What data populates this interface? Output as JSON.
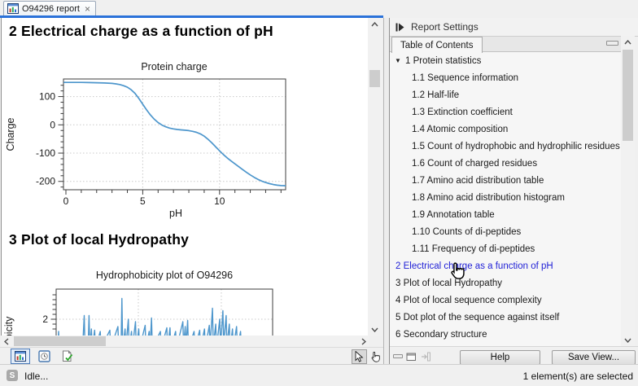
{
  "tab": {
    "title": "O94296 report",
    "close_glyph": "×"
  },
  "report": {
    "section2_heading": "2 Electrical charge as a function of pH",
    "section3_heading": "3 Plot of local Hydropathy"
  },
  "chart_data": [
    {
      "type": "line",
      "title": "Protein charge",
      "xlabel": "pH",
      "ylabel": "Charge",
      "xlim": [
        0,
        14.3
      ],
      "ylim": [
        -230,
        162
      ],
      "x_major_ticks": [
        0,
        5,
        10
      ],
      "y_major_ticks": [
        100,
        0,
        -100,
        -200
      ],
      "x_gridlines": [
        5,
        10
      ],
      "grid": true,
      "line_color": "#4d96cc",
      "points": [
        [
          -0.15,
          150
        ],
        [
          0,
          150
        ],
        [
          0.5,
          150
        ],
        [
          1,
          150
        ],
        [
          1.5,
          149.5
        ],
        [
          2,
          149
        ],
        [
          2.5,
          148
        ],
        [
          3,
          146.5
        ],
        [
          3.25,
          145
        ],
        [
          3.5,
          142.5
        ],
        [
          3.75,
          138.5
        ],
        [
          4,
          133
        ],
        [
          4.25,
          124
        ],
        [
          4.5,
          111
        ],
        [
          4.75,
          93
        ],
        [
          5,
          73
        ],
        [
          5.25,
          53
        ],
        [
          5.5,
          35
        ],
        [
          5.75,
          20
        ],
        [
          6,
          8
        ],
        [
          6.25,
          -1
        ],
        [
          6.5,
          -7
        ],
        [
          6.75,
          -11.5
        ],
        [
          7,
          -14.5
        ],
        [
          7.25,
          -16.5
        ],
        [
          7.5,
          -18
        ],
        [
          7.75,
          -19
        ],
        [
          8,
          -20.5
        ],
        [
          8.25,
          -23
        ],
        [
          8.5,
          -26.5
        ],
        [
          8.75,
          -32
        ],
        [
          9,
          -40
        ],
        [
          9.25,
          -51
        ],
        [
          9.5,
          -64
        ],
        [
          9.75,
          -78
        ],
        [
          10,
          -92
        ],
        [
          10.25,
          -105
        ],
        [
          10.5,
          -117
        ],
        [
          10.75,
          -128
        ],
        [
          11,
          -138
        ],
        [
          11.25,
          -148
        ],
        [
          11.5,
          -158
        ],
        [
          11.75,
          -168
        ],
        [
          12,
          -177
        ],
        [
          12.25,
          -185.5
        ],
        [
          12.5,
          -193
        ],
        [
          12.75,
          -199
        ],
        [
          13,
          -204
        ],
        [
          13.25,
          -208
        ],
        [
          13.5,
          -211
        ],
        [
          13.75,
          -213.5
        ],
        [
          14,
          -215
        ],
        [
          14.3,
          -215.5
        ]
      ]
    },
    {
      "type": "line",
      "title": "Hydrophobicity plot of O94296",
      "xlabel": "",
      "ylabel": "Hydrophobicity",
      "visible_y_major_tick": 2,
      "y_minor_ticks": [
        1.6,
        1.8,
        2.2,
        2.4,
        2.6,
        2.8,
        3.0
      ],
      "x_gridlines_residue": [
        102.5,
        206
      ],
      "grid": true,
      "line_color": "#4d96cc",
      "note_clipped": "only top of plot visible",
      "points": [
        [
          0,
          0.8
        ],
        [
          2,
          0.8
        ],
        [
          3,
          1.5
        ],
        [
          4,
          0.8
        ],
        [
          33,
          0.8
        ],
        [
          35,
          2.15
        ],
        [
          36,
          0.8
        ],
        [
          40,
          0.9
        ],
        [
          41,
          2.15
        ],
        [
          42,
          0.8
        ],
        [
          44,
          1.6
        ],
        [
          45,
          0.8
        ],
        [
          48,
          1.55
        ],
        [
          49,
          0.8
        ],
        [
          55,
          1.5
        ],
        [
          56,
          0.8
        ],
        [
          67,
          1.55
        ],
        [
          68,
          0.8
        ],
        [
          77,
          1.7
        ],
        [
          78,
          0.9
        ],
        [
          81,
          0.9
        ],
        [
          82,
          2.85
        ],
        [
          83,
          0.8
        ],
        [
          86,
          1.6
        ],
        [
          87,
          0.8
        ],
        [
          90,
          2.0
        ],
        [
          91,
          0.8
        ],
        [
          94,
          1.5
        ],
        [
          95,
          0.8
        ],
        [
          99,
          1.9
        ],
        [
          100,
          0.8
        ],
        [
          103,
          1.6
        ],
        [
          104,
          0.8
        ],
        [
          111,
          1.75
        ],
        [
          112,
          0.8
        ],
        [
          116,
          1.5
        ],
        [
          117,
          0.8
        ],
        [
          119,
          2.05
        ],
        [
          120,
          0.8
        ],
        [
          130,
          1.5
        ],
        [
          131,
          0.8
        ],
        [
          138,
          1.65
        ],
        [
          139,
          0.8
        ],
        [
          142,
          1.65
        ],
        [
          143,
          0.8
        ],
        [
          149,
          1.5
        ],
        [
          150,
          0.8
        ],
        [
          158,
          1.9
        ],
        [
          159,
          0.9
        ],
        [
          161,
          1.7
        ],
        [
          162,
          0.9
        ],
        [
          164,
          1.95
        ],
        [
          165,
          0.8
        ],
        [
          172,
          1.5
        ],
        [
          173,
          0.8
        ],
        [
          179,
          1.55
        ],
        [
          180,
          0.8
        ],
        [
          185,
          1.6
        ],
        [
          186,
          0.8
        ],
        [
          191,
          1.75
        ],
        [
          192,
          0.9
        ],
        [
          195,
          2.45
        ],
        [
          196,
          0.9
        ],
        [
          199,
          1.8
        ],
        [
          200,
          0.8
        ],
        [
          204,
          2.0
        ],
        [
          205,
          0.9
        ],
        [
          208,
          2.35
        ],
        [
          209,
          1.0
        ],
        [
          212,
          2.15
        ],
        [
          213,
          0.9
        ],
        [
          216,
          1.8
        ],
        [
          217,
          0.8
        ],
        [
          220,
          1.6
        ],
        [
          221,
          0.8
        ],
        [
          225,
          1.7
        ],
        [
          226,
          0.8
        ],
        [
          230,
          1.5
        ],
        [
          231,
          0.8
        ],
        [
          270,
          0.8
        ]
      ]
    }
  ],
  "sidebar": {
    "header": "Report Settings",
    "tab": "Table of Contents",
    "toc": [
      {
        "label": "1 Protein statistics",
        "level": 0,
        "expander": true,
        "selected": false
      },
      {
        "label": "1.1 Sequence information",
        "level": 1,
        "expander": false,
        "selected": false
      },
      {
        "label": "1.2 Half-life",
        "level": 1,
        "expander": false,
        "selected": false
      },
      {
        "label": "1.3 Extinction coefficient",
        "level": 1,
        "expander": false,
        "selected": false
      },
      {
        "label": "1.4 Atomic composition",
        "level": 1,
        "expander": false,
        "selected": false
      },
      {
        "label": "1.5 Count of hydrophobic and hydrophilic residues",
        "level": 1,
        "expander": false,
        "selected": false
      },
      {
        "label": "1.6 Count of charged residues",
        "level": 1,
        "expander": false,
        "selected": false
      },
      {
        "label": "1.7 Amino acid distribution table",
        "level": 1,
        "expander": false,
        "selected": false
      },
      {
        "label": "1.8 Amino acid distribution histogram",
        "level": 1,
        "expander": false,
        "selected": false
      },
      {
        "label": "1.9 Annotation table",
        "level": 1,
        "expander": false,
        "selected": false
      },
      {
        "label": "1.10 Counts of di-peptides",
        "level": 1,
        "expander": false,
        "selected": false
      },
      {
        "label": "1.11 Frequency of di-peptides",
        "level": 1,
        "expander": false,
        "selected": false
      },
      {
        "label": "2 Electrical charge as a function of pH",
        "level": 0,
        "expander": false,
        "selected": true
      },
      {
        "label": "3 Plot of local Hydropathy",
        "level": 0,
        "expander": false,
        "selected": false
      },
      {
        "label": "4 Plot of local sequence complexity",
        "level": 0,
        "expander": false,
        "selected": false
      },
      {
        "label": "5 Dot plot of the sequence against itself",
        "level": 0,
        "expander": false,
        "selected": false
      },
      {
        "label": "6 Secondary structure",
        "level": 0,
        "expander": false,
        "selected": false
      }
    ],
    "help_button": "Help",
    "save_view_button": "Save View..."
  },
  "status_bar": {
    "badge": "S",
    "left": "Idle...",
    "right": "1 element(s) are selected"
  },
  "icons": {
    "tree_expanded": "▼"
  },
  "colors": {
    "accent_blue": "#2b72d9",
    "link_blue": "#1f1fd6",
    "curve_blue": "#4d96cc"
  }
}
